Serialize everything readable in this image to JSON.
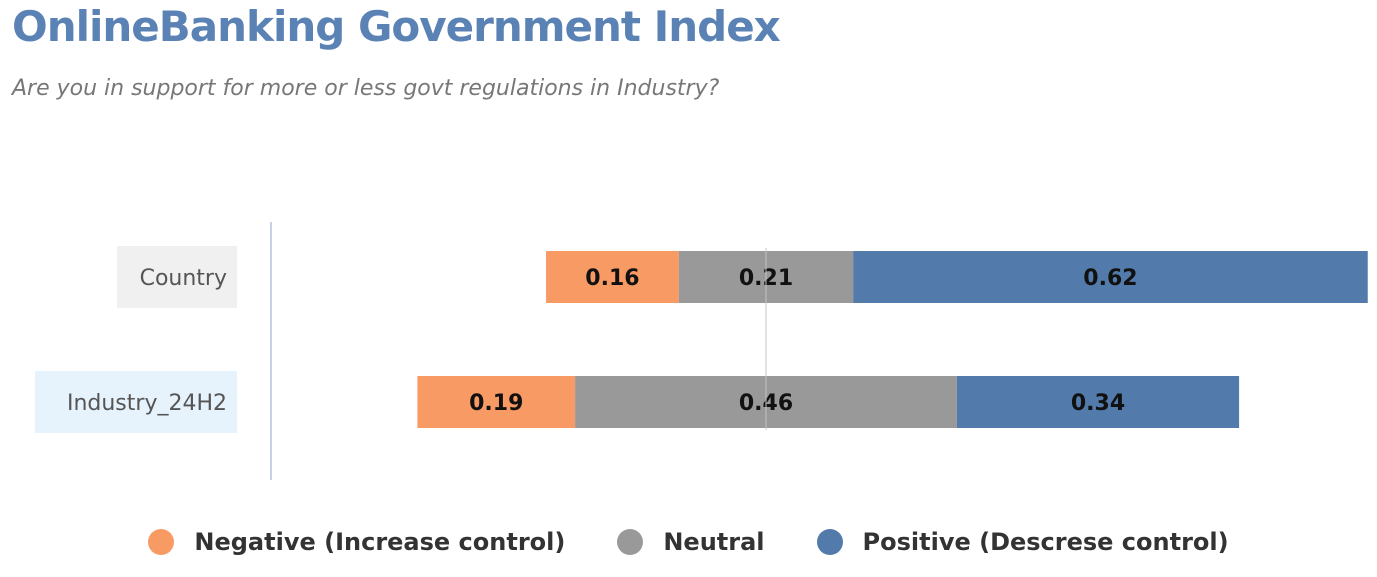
{
  "title": "OnlineBanking Government Index",
  "subtitle": "Are you in support for more or less govt regulations in Industry?",
  "colors": {
    "negative": "#f89a64",
    "neutral": "#999999",
    "positive": "#527bab",
    "category_country_bg": "#f0f0f0",
    "category_industry_bg": "#e6f2fc",
    "axis_line": "#c8d2e6",
    "title": "#5a82b4"
  },
  "chart_data": {
    "type": "bar",
    "orientation": "horizontal",
    "stacked": true,
    "diverging": true,
    "categories": [
      "Country",
      "Industry_24H2"
    ],
    "series": [
      {
        "name": "Negative (Increase control)",
        "values": [
          0.16,
          0.19
        ]
      },
      {
        "name": "Neutral",
        "values": [
          0.21,
          0.46
        ]
      },
      {
        "name": "Positive (Descrese control)",
        "values": [
          0.62,
          0.34
        ]
      }
    ],
    "legend_position": "bottom",
    "grid": false
  }
}
